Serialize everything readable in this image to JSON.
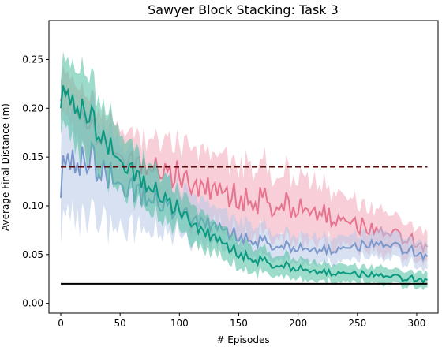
{
  "chart_data": {
    "type": "line",
    "title": "Sawyer Block Stacking: Task 3",
    "xlabel": "# Episodes",
    "ylabel": "Average Final Distance (m)",
    "xlim": [
      -10,
      318
    ],
    "ylim": [
      -0.01,
      0.29
    ],
    "xticks": [
      0,
      50,
      100,
      150,
      200,
      250,
      300
    ],
    "yticks": [
      0.0,
      0.05,
      0.1,
      0.15,
      0.2,
      0.25
    ],
    "ytick_labels": [
      "0.00",
      "0.05",
      "0.10",
      "0.15",
      "0.20",
      "0.25"
    ],
    "grid": false,
    "reference_lines": [
      {
        "name": "baseline-dashed",
        "y": 0.14,
        "x_range": [
          0,
          309
        ],
        "style": "dashed",
        "color": "#5a0a0a"
      },
      {
        "name": "target-solid",
        "y": 0.02,
        "x_range": [
          0,
          309
        ],
        "style": "solid",
        "color": "#000000"
      }
    ],
    "series": [
      {
        "name": "pink",
        "color": "#e8738f",
        "fill": "#f2a7b8",
        "x": [
          0,
          10,
          20,
          30,
          40,
          50,
          60,
          70,
          80,
          90,
          100,
          110,
          120,
          130,
          140,
          150,
          160,
          170,
          180,
          190,
          200,
          210,
          220,
          230,
          240,
          250,
          260,
          270,
          280,
          290,
          300,
          309
        ],
        "mean": [
          0.215,
          0.205,
          0.19,
          0.175,
          0.165,
          0.155,
          0.148,
          0.142,
          0.138,
          0.135,
          0.13,
          0.125,
          0.122,
          0.118,
          0.115,
          0.11,
          0.108,
          0.105,
          0.102,
          0.1,
          0.098,
          0.097,
          0.095,
          0.09,
          0.085,
          0.08,
          0.075,
          0.072,
          0.07,
          0.068,
          0.062,
          0.058
        ],
        "band": [
          0.02,
          0.025,
          0.03,
          0.03,
          0.03,
          0.03,
          0.03,
          0.03,
          0.032,
          0.035,
          0.04,
          0.04,
          0.04,
          0.04,
          0.04,
          0.038,
          0.038,
          0.038,
          0.036,
          0.036,
          0.035,
          0.034,
          0.032,
          0.03,
          0.028,
          0.026,
          0.024,
          0.022,
          0.02,
          0.018,
          0.016,
          0.015
        ]
      },
      {
        "name": "blue",
        "color": "#7b98cc",
        "fill": "#b7c8e8",
        "x": [
          0,
          10,
          20,
          30,
          40,
          50,
          60,
          70,
          80,
          90,
          100,
          110,
          120,
          130,
          140,
          150,
          160,
          170,
          180,
          190,
          200,
          210,
          220,
          230,
          240,
          250,
          260,
          270,
          280,
          290,
          300,
          309
        ],
        "mean": [
          0.128,
          0.145,
          0.15,
          0.145,
          0.135,
          0.128,
          0.12,
          0.112,
          0.105,
          0.1,
          0.095,
          0.09,
          0.085,
          0.08,
          0.075,
          0.07,
          0.066,
          0.063,
          0.06,
          0.058,
          0.057,
          0.056,
          0.056,
          0.056,
          0.057,
          0.058,
          0.06,
          0.06,
          0.058,
          0.056,
          0.052,
          0.048
        ],
        "band": [
          0.05,
          0.055,
          0.06,
          0.055,
          0.05,
          0.045,
          0.04,
          0.036,
          0.032,
          0.03,
          0.028,
          0.026,
          0.024,
          0.022,
          0.02,
          0.018,
          0.018,
          0.017,
          0.016,
          0.015,
          0.015,
          0.015,
          0.015,
          0.014,
          0.014,
          0.014,
          0.014,
          0.014,
          0.014,
          0.014,
          0.013,
          0.013
        ]
      },
      {
        "name": "teal",
        "color": "#0a9a82",
        "fill": "#4dbf9e",
        "x": [
          0,
          10,
          20,
          30,
          40,
          50,
          60,
          70,
          80,
          90,
          100,
          110,
          120,
          130,
          140,
          150,
          160,
          170,
          180,
          190,
          200,
          210,
          220,
          230,
          240,
          250,
          260,
          270,
          280,
          290,
          300,
          309
        ],
        "mean": [
          0.212,
          0.205,
          0.2,
          0.182,
          0.165,
          0.15,
          0.138,
          0.125,
          0.115,
          0.105,
          0.095,
          0.085,
          0.075,
          0.068,
          0.06,
          0.052,
          0.047,
          0.043,
          0.04,
          0.038,
          0.036,
          0.034,
          0.033,
          0.032,
          0.031,
          0.03,
          0.029,
          0.028,
          0.027,
          0.026,
          0.025,
          0.024
        ],
        "band": [
          0.03,
          0.04,
          0.045,
          0.04,
          0.035,
          0.03,
          0.028,
          0.026,
          0.025,
          0.024,
          0.022,
          0.02,
          0.02,
          0.018,
          0.016,
          0.015,
          0.014,
          0.013,
          0.012,
          0.012,
          0.011,
          0.011,
          0.01,
          0.01,
          0.01,
          0.009,
          0.009,
          0.009,
          0.008,
          0.008,
          0.008,
          0.008
        ]
      }
    ]
  }
}
